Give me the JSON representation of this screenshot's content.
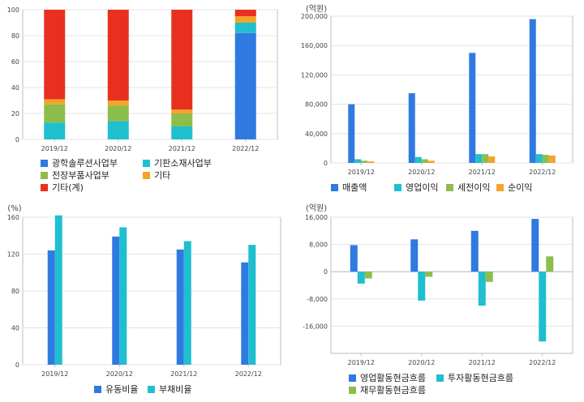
{
  "chart_data": [
    {
      "type": "bar",
      "stacked": true,
      "categories": [
        "2019/12",
        "2020/12",
        "2021/12",
        "2022/12"
      ],
      "ylim": [
        0,
        100
      ],
      "yticks": [
        0,
        20,
        40,
        60,
        80,
        100
      ],
      "series": [
        {
          "name": "광학솔루션사업부",
          "color": "#2f7ae0",
          "values": [
            0,
            0,
            0,
            82
          ]
        },
        {
          "name": "기판소재사업부",
          "color": "#1fbfd0",
          "values": [
            13,
            14,
            10,
            8
          ]
        },
        {
          "name": "전장부품사업부",
          "color": "#8dbd4b",
          "values": [
            14,
            12,
            10,
            0
          ]
        },
        {
          "name": "기타",
          "color": "#f2a52a",
          "values": [
            4,
            4,
            3,
            5
          ]
        },
        {
          "name": "기타(계)",
          "color": "#e8301f",
          "values": [
            69,
            70,
            77,
            5
          ]
        }
      ]
    },
    {
      "type": "bar",
      "unit": "(억원)",
      "categories": [
        "2019/12",
        "2020/12",
        "2021/12",
        "2022/12"
      ],
      "ylim": [
        0,
        200000
      ],
      "yticks": [
        0,
        40000,
        80000,
        120000,
        160000,
        200000
      ],
      "ytick_labels": [
        "0",
        "40,000",
        "80,000",
        "120,000",
        "160,000",
        "200,000"
      ],
      "series": [
        {
          "name": "매출액",
          "color": "#2f7ae0",
          "values": [
            80000,
            95000,
            150000,
            196000
          ]
        },
        {
          "name": "영업이익",
          "color": "#1fbfd0",
          "values": [
            5000,
            8000,
            12000,
            12000
          ]
        },
        {
          "name": "세전이익",
          "color": "#8dbd4b",
          "values": [
            3000,
            5000,
            12000,
            11000
          ]
        },
        {
          "name": "순이익",
          "color": "#f2a52a",
          "values": [
            2000,
            3000,
            9000,
            10000
          ]
        }
      ]
    },
    {
      "type": "bar",
      "unit": "(%)",
      "categories": [
        "2019/12",
        "2020/12",
        "2021/12",
        "2022/12"
      ],
      "ylim": [
        0,
        160
      ],
      "yticks": [
        0,
        40,
        80,
        120,
        160
      ],
      "series": [
        {
          "name": "유동비율",
          "color": "#2f7ae0",
          "values": [
            124,
            139,
            125,
            111
          ]
        },
        {
          "name": "부채비율",
          "color": "#1fbfd0",
          "values": [
            162,
            149,
            134,
            130
          ]
        }
      ]
    },
    {
      "type": "bar",
      "unit": "(억원)",
      "categories": [
        "2019/12",
        "2020/12",
        "2021/12",
        "2022/12"
      ],
      "ylim": [
        -24000,
        16000
      ],
      "yticks": [
        -16000,
        -8000,
        0,
        8000,
        16000
      ],
      "ytick_labels": [
        "-16,000",
        "-8,000",
        "0",
        "8,000",
        "16,000"
      ],
      "series": [
        {
          "name": "영업활동현금흐름",
          "color": "#2f7ae0",
          "values": [
            7800,
            9500,
            12000,
            15500
          ]
        },
        {
          "name": "투자활동현금흐름",
          "color": "#1fbfd0",
          "values": [
            -3500,
            -8500,
            -10000,
            -20500
          ]
        },
        {
          "name": "재무활동현금흐름",
          "color": "#8dbd4b",
          "values": [
            -2000,
            -1500,
            -3000,
            4500
          ]
        }
      ]
    }
  ]
}
